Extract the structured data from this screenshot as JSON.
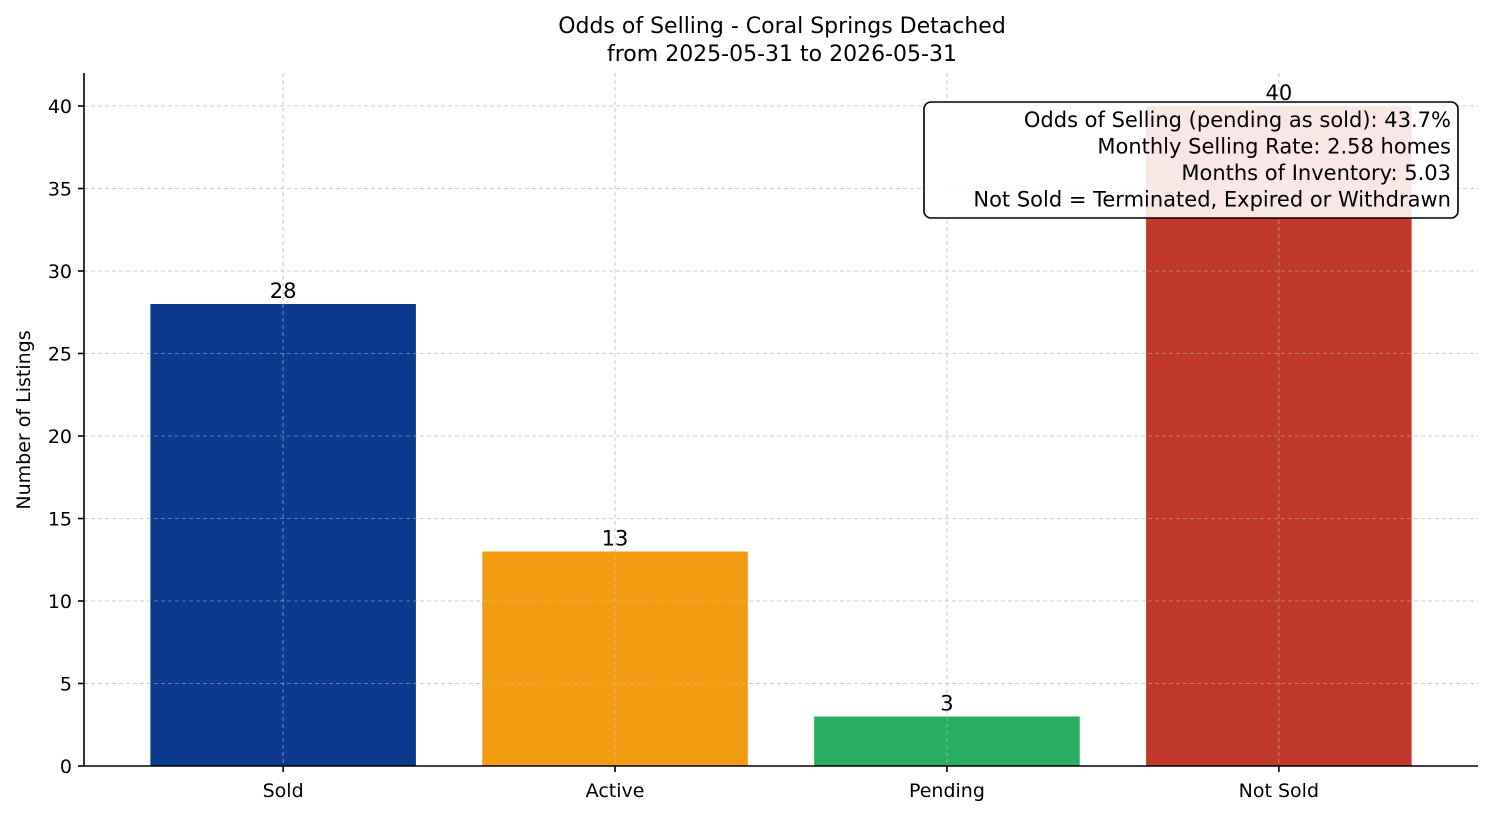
{
  "chart_data": {
    "type": "bar",
    "title": "Odds of Selling - Coral Springs Detached",
    "subtitle": "from 2025-05-31 to 2026-05-31",
    "xlabel": "",
    "ylabel": "Number of Listings",
    "categories": [
      "Sold",
      "Active",
      "Pending",
      "Not Sold"
    ],
    "values": [
      28,
      13,
      3,
      40
    ],
    "colors": [
      "#0b3a8e",
      "#f39c12",
      "#27ae60",
      "#c0392b"
    ],
    "ylim": [
      0,
      42
    ],
    "yticks": [
      0,
      5,
      10,
      15,
      20,
      25,
      30,
      35,
      40
    ],
    "grid": true,
    "annotation_lines": [
      "Odds of Selling (pending as sold): 43.7%",
      "Monthly Selling Rate: 2.58 homes",
      "Months of Inventory: 5.03",
      "Not Sold = Terminated, Expired or Withdrawn"
    ],
    "annotation_placement": "top-right"
  }
}
